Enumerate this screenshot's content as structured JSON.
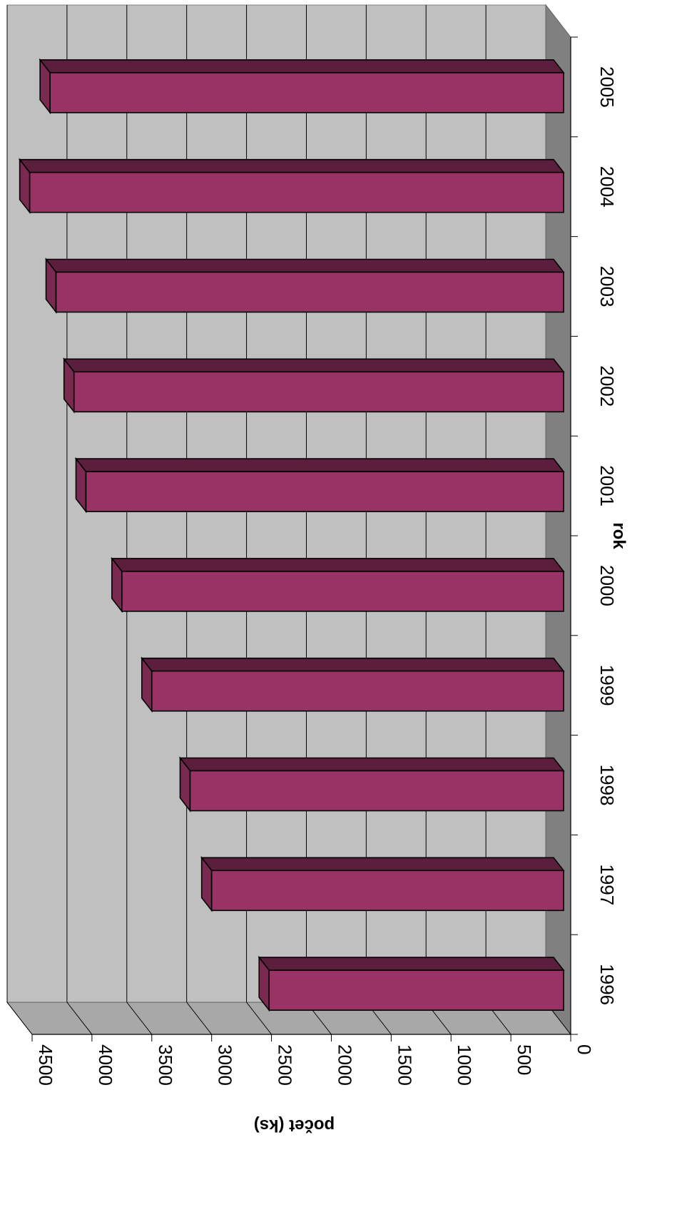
{
  "chart_data": {
    "type": "bar",
    "orientation": "horizontal",
    "style": "3d",
    "categories": [
      "1996",
      "1997",
      "1998",
      "1999",
      "2000",
      "2001",
      "2002",
      "2003",
      "2004",
      "2005"
    ],
    "series": [
      {
        "values": [
          2520,
          3000,
          3180,
          3500,
          3750,
          4050,
          4150,
          4300,
          4520,
          4350
        ]
      }
    ],
    "xlabel": "rok",
    "ylabel": "počet (ks)",
    "ylim": [
      0,
      4500
    ],
    "yticks": [
      0,
      500,
      1000,
      1500,
      2000,
      2500,
      3000,
      3500,
      4000,
      4500
    ],
    "grid": true,
    "legend": "none",
    "colors": {
      "bar_front": "#993366",
      "bar_top": "#5c1e3d",
      "bar_side": "#7a2950",
      "wall": "#c0c0c0",
      "floor": "#808080",
      "grid": "#000000"
    }
  }
}
